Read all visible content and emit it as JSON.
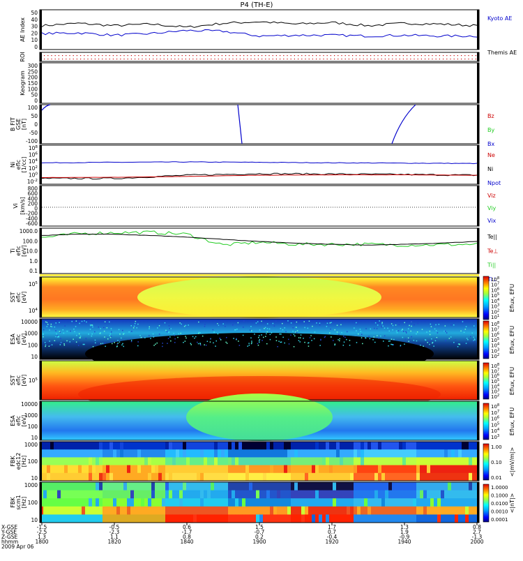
{
  "title": "P4 (TH-E)",
  "panels": {
    "ae": {
      "ylabel": "AE Index",
      "yticks": [
        "50",
        "40",
        "30",
        "20",
        "10",
        "0"
      ],
      "legend": [
        {
          "label": "Kyoto AE",
          "color": "#0000cc"
        },
        {
          "label": "Themis AE",
          "color": "#000000"
        }
      ]
    },
    "roi": {
      "ylabel": "ROI"
    },
    "keogram": {
      "ylabel": "Keogram",
      "yticks": [
        "300",
        "250",
        "200",
        "150",
        "100",
        "50",
        "0"
      ]
    },
    "bfit": {
      "ylabel": "B FIT",
      "ylabel2": "GSE",
      "units": "[nT]",
      "yticks": [
        "100",
        "50",
        "0",
        "-50",
        "-100"
      ],
      "legend": [
        {
          "label": "Bz",
          "color": "#cc0000"
        },
        {
          "label": "By",
          "color": "#22cc22"
        },
        {
          "label": "Bx",
          "color": "#0000cc"
        }
      ]
    },
    "ni": {
      "ylabel": "Ni",
      "ylabel2": "eflc",
      "units": "[1/cc]",
      "yticks": [
        "10^8",
        "10^6",
        "10^4",
        "10^2",
        "10^0",
        "10^-2"
      ],
      "legend": [
        {
          "label": "Ne",
          "color": "#cc0000"
        },
        {
          "label": "Ni",
          "color": "#000000"
        },
        {
          "label": "Npot",
          "color": "#0000cc"
        }
      ]
    },
    "vi": {
      "ylabel": "Vi",
      "units": "[km/s]",
      "yticks": [
        "800",
        "600",
        "400",
        "200",
        "0",
        "-200",
        "-400",
        "-600"
      ],
      "legend": [
        {
          "label": "Viz",
          "color": "#cc0000"
        },
        {
          "label": "Viy",
          "color": "#22cc22"
        },
        {
          "label": "Vix",
          "color": "#0000cc"
        }
      ]
    },
    "ti": {
      "ylabel": "Ti",
      "ylabel2": "eflc",
      "units": "[eV]",
      "yticks": [
        "1000.0",
        "100.0",
        "10.0",
        "1.0",
        "0.1"
      ],
      "legend": [
        {
          "label": "Te||",
          "color": "#000000"
        },
        {
          "label": "Te⊥",
          "color": "#cc0000"
        },
        {
          "label": "Ti||",
          "color": "#22cc22"
        },
        {
          "label": "Ti⊥",
          "color": "#0000cc"
        }
      ]
    },
    "sst_e": {
      "ylabel": "SST",
      "ylabel2": "eflc",
      "units": "[eV]",
      "yticks": [
        "10^5",
        "10^4"
      ],
      "colorbar": {
        "ticks": [
          "10^8",
          "10^7",
          "10^6",
          "10^5",
          "10^4",
          "10^3",
          "10^2",
          "10^1"
        ],
        "label": "Eflux, EFU"
      }
    },
    "esa_e": {
      "ylabel": "ESA",
      "ylabel2": "eflc",
      "units": "[eV]",
      "yticks": [
        "10000",
        "1000",
        "100",
        "10"
      ],
      "colorbar": {
        "ticks": [
          "10^8",
          "10^7",
          "10^6",
          "10^5",
          "10^4",
          "10^3",
          "10^2"
        ],
        "label": "Eflux, EFU"
      }
    },
    "sst_i": {
      "ylabel": "SST",
      "ylabel2": "eflc",
      "units": "[eV]",
      "yticks": [
        "10^5"
      ],
      "colorbar": {
        "ticks": [
          "10^8",
          "10^7",
          "10^6",
          "10^5",
          "10^4",
          "10^3",
          "10^2"
        ],
        "label": "Eflux, EFU"
      }
    },
    "esa_i": {
      "ylabel": "ESA",
      "ylabel2": "eflc",
      "units": "[eV]",
      "yticks": [
        "10000",
        "1000",
        "100",
        "10"
      ],
      "colorbar": {
        "ticks": [
          "10^8",
          "10^7",
          "10^6",
          "10^5",
          "10^4",
          "10^3"
        ],
        "label": "Eflux, EFU"
      }
    },
    "fbk_e": {
      "ylabel": "FBK",
      "ylabel2": "edc12",
      "units": "[Hz]",
      "yticks": [
        "1000",
        "100",
        "10"
      ],
      "colorbar": {
        "ticks": [
          "1.00",
          "0.10",
          "0.01"
        ],
        "label": "<|mV/m|>"
      }
    },
    "fbk_b": {
      "ylabel": "FBK",
      "ylabel2": "scm1",
      "units": "[Hz]",
      "yticks": [
        "1000",
        "100",
        "10"
      ],
      "colorbar": {
        "ticks": [
          "1.0000",
          "0.1000",
          "0.0100",
          "0.0010",
          "0.0001"
        ],
        "label": "<|nT|>"
      }
    }
  },
  "xaxis": {
    "row_labels": [
      "X-GSE",
      "Y-GSE",
      "Z-GSE",
      "hhmm",
      "2009 Apr 06"
    ],
    "ticks": [
      {
        "x": "-1.5",
        "y": "-2.5",
        "z": "1.3",
        "time": "1800"
      },
      {
        "x": "-0.5",
        "y": "-2.3",
        "z": "1.1",
        "time": "1820"
      },
      {
        "x": "0.6",
        "y": "-1.7",
        "z": "0.8",
        "time": "1840"
      },
      {
        "x": "1.5",
        "y": "-0.7",
        "z": "0.2",
        "time": "1900"
      },
      {
        "x": "1.7",
        "y": "0.7",
        "z": "-0.4",
        "time": "1920"
      },
      {
        "x": "1.3",
        "y": "1.9",
        "z": "-0.9",
        "time": "1940"
      },
      {
        "x": "0.8",
        "y": "2.7",
        "z": "-1.3",
        "time": "2000"
      }
    ]
  },
  "chart_data": [
    {
      "type": "line",
      "title": "P4 (TH-E)",
      "ylabel": "AE Index",
      "ylim": [
        0,
        50
      ],
      "x": [
        "1800",
        "1810",
        "1820",
        "1830",
        "1840",
        "1850",
        "1900",
        "1910",
        "1920",
        "1930",
        "1940",
        "1950",
        "2000"
      ],
      "series": [
        {
          "name": "Themis AE",
          "values": [
            30,
            33,
            30,
            32,
            28,
            33,
            35,
            32,
            34,
            30,
            33,
            32,
            30
          ]
        },
        {
          "name": "Kyoto AE",
          "values": [
            20,
            21,
            18,
            20,
            24,
            23,
            17,
            18,
            18,
            17,
            18,
            17,
            17
          ]
        }
      ]
    },
    {
      "type": "line",
      "ylabel": "B FIT GSE [nT]",
      "ylim": [
        -100,
        100
      ],
      "x": [
        "1800",
        "1820",
        "1840",
        "1900",
        "1920",
        "1940",
        "2000"
      ],
      "series": [
        {
          "name": "Bx",
          "values": [
            95,
            null,
            null,
            null,
            null,
            null,
            null
          ]
        }
      ]
    },
    {
      "type": "line",
      "ylabel": "Ni eflc [1/cc]",
      "scale": "log",
      "ylim": [
        0.01,
        100000000
      ],
      "x": [
        "1800",
        "1820",
        "1840",
        "1900",
        "1920",
        "1940",
        "2000"
      ],
      "series": [
        {
          "name": "Npot",
          "values": [
            3000,
            4000,
            5000,
            4000,
            3000,
            2500,
            2000
          ]
        },
        {
          "name": "Ni",
          "values": [
            0.3,
            0.3,
            2,
            5,
            4,
            3,
            2
          ]
        },
        {
          "name": "Ne",
          "values": [
            0.5,
            0.6,
            1,
            2,
            2.5,
            2.5,
            2
          ]
        }
      ]
    },
    {
      "type": "line",
      "ylabel": "Ti eflc [eV]",
      "scale": "log",
      "ylim": [
        0.05,
        3000
      ],
      "x": [
        "1800",
        "1810",
        "1820",
        "1830",
        "1840",
        "1850",
        "1900",
        "1910",
        "1920",
        "1930",
        "1940",
        "1950",
        "2000"
      ],
      "series": [
        {
          "name": "Te||",
          "values": [
            500,
            700,
            700,
            500,
            350,
            200,
            120,
            80,
            60,
            50,
            60,
            80,
            120
          ]
        },
        {
          "name": "Ti||",
          "values": [
            300,
            800,
            1000,
            1100,
            700,
            50,
            100,
            60,
            60,
            60,
            50,
            55,
            60
          ]
        }
      ]
    },
    {
      "type": "heatmap",
      "ylabel": "SST eflc [eV]",
      "x": [
        "1800",
        "1820",
        "1840",
        "1900",
        "1920",
        "1940",
        "2000"
      ],
      "colorbar_label": "Eflux, EFU"
    },
    {
      "type": "heatmap",
      "ylabel": "ESA eflc [eV]",
      "x": [
        "1800",
        "1820",
        "1840",
        "1900",
        "1920",
        "1940",
        "2000"
      ],
      "colorbar_label": "Eflux, EFU"
    },
    {
      "type": "heatmap",
      "ylabel": "SST eflc [eV]",
      "x": [
        "1800",
        "1820",
        "1840",
        "1900",
        "1920",
        "1940",
        "2000"
      ],
      "colorbar_label": "Eflux, EFU"
    },
    {
      "type": "heatmap",
      "ylabel": "ESA eflc [eV]",
      "x": [
        "1800",
        "1820",
        "1840",
        "1900",
        "1920",
        "1940",
        "2000"
      ],
      "colorbar_label": "Eflux, EFU"
    },
    {
      "type": "heatmap",
      "ylabel": "FBK edc12 [Hz]",
      "x": [
        "1800",
        "1820",
        "1840",
        "1900",
        "1920",
        "1940",
        "2000"
      ],
      "colorbar_label": "<|mV/m|>"
    },
    {
      "type": "heatmap",
      "ylabel": "FBK scm1 [Hz]",
      "x": [
        "1800",
        "1820",
        "1840",
        "1900",
        "1920",
        "1940",
        "2000"
      ],
      "colorbar_label": "<|nT|>"
    }
  ]
}
